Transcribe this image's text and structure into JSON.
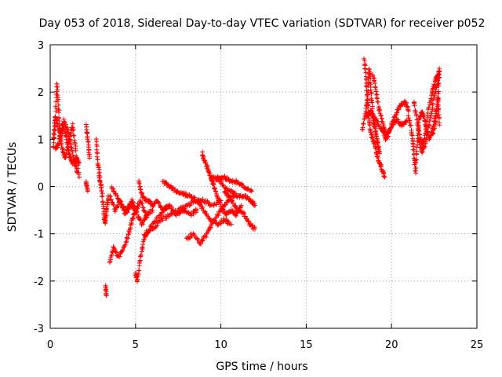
{
  "chart_data": {
    "type": "scatter",
    "title": "Day 053 of 2018, Sidereal Day-to-day VTEC variation (SDTVAR) for receiver p052",
    "xlabel": "GPS time / hours",
    "ylabel": "SDTVAR / TECUs",
    "xlim": [
      0,
      25
    ],
    "ylim": [
      -3,
      3
    ],
    "xticks": [
      0,
      5,
      10,
      15,
      20,
      25
    ],
    "yticks": [
      -3,
      -2,
      -1,
      0,
      1,
      2,
      3
    ],
    "grid": true,
    "marker": "+",
    "color": "#ff0000",
    "series": [
      {
        "name": "SDTVAR",
        "traces": [
          [
            [
              0.2,
              0.8
            ],
            [
              0.3,
              1.4
            ],
            [
              0.4,
              2.2
            ],
            [
              0.5,
              1.6
            ],
            [
              0.6,
              1.0
            ],
            [
              0.8,
              1.4
            ],
            [
              1.0,
              1.2
            ],
            [
              1.2,
              0.9
            ],
            [
              1.4,
              0.5
            ],
            [
              1.6,
              0.3
            ]
          ],
          [
            [
              0.2,
              1.0
            ],
            [
              0.3,
              1.5
            ],
            [
              0.5,
              1.2
            ],
            [
              0.7,
              0.8
            ],
            [
              0.9,
              0.6
            ],
            [
              1.1,
              1.0
            ],
            [
              1.3,
              1.3
            ],
            [
              1.5,
              0.8
            ],
            [
              1.7,
              0.2
            ]
          ],
          [
            [
              0.3,
              0.8
            ],
            [
              0.5,
              0.9
            ],
            [
              0.7,
              1.3
            ],
            [
              0.9,
              1.1
            ],
            [
              1.1,
              0.7
            ],
            [
              1.3,
              0.5
            ],
            [
              1.5,
              0.6
            ],
            [
              1.7,
              0.5
            ]
          ],
          [
            [
              2.1,
              0.1
            ],
            [
              2.2,
              -0.1
            ]
          ],
          [
            [
              2.1,
              1.3
            ],
            [
              2.2,
              1.0
            ],
            [
              2.3,
              0.6
            ]
          ],
          [
            [
              2.7,
              1.0
            ],
            [
              2.8,
              0.5
            ],
            [
              2.9,
              0.2
            ],
            [
              3.0,
              0.0
            ],
            [
              3.1,
              -0.4
            ],
            [
              3.2,
              -0.8
            ],
            [
              3.3,
              -0.5
            ],
            [
              3.4,
              -0.2
            ]
          ],
          [
            [
              3.25,
              -2.1
            ],
            [
              3.3,
              -2.3
            ]
          ],
          [
            [
              3.5,
              -1.6
            ],
            [
              3.7,
              -1.3
            ],
            [
              4.0,
              -1.5
            ],
            [
              4.3,
              -1.3
            ],
            [
              4.6,
              -1.0
            ],
            [
              4.8,
              -0.7
            ],
            [
              5.0,
              -0.5
            ]
          ],
          [
            [
              3.5,
              -0.2
            ],
            [
              3.8,
              -0.5
            ],
            [
              4.1,
              -0.3
            ],
            [
              4.4,
              -0.6
            ],
            [
              4.7,
              -0.4
            ],
            [
              5.0,
              -0.5
            ],
            [
              5.3,
              -0.3
            ],
            [
              5.6,
              -0.6
            ],
            [
              6.0,
              -0.5
            ]
          ],
          [
            [
              3.6,
              0.0
            ],
            [
              3.9,
              -0.2
            ],
            [
              4.2,
              -0.4
            ],
            [
              4.5,
              -0.5
            ],
            [
              4.8,
              -0.3
            ],
            [
              5.1,
              -0.6
            ],
            [
              5.4,
              -0.8
            ],
            [
              5.7,
              -0.6
            ]
          ],
          [
            [
              5.0,
              -1.8
            ],
            [
              5.1,
              -2.0
            ],
            [
              5.3,
              -1.5
            ],
            [
              5.5,
              -1.1
            ],
            [
              5.8,
              -0.9
            ],
            [
              6.2,
              -0.7
            ],
            [
              6.6,
              -0.5
            ],
            [
              7.0,
              -0.4
            ]
          ],
          [
            [
              5.2,
              0.1
            ],
            [
              5.4,
              -0.2
            ],
            [
              5.7,
              -0.3
            ],
            [
              6.0,
              -0.4
            ],
            [
              6.3,
              -0.3
            ],
            [
              6.6,
              -0.5
            ],
            [
              7.0,
              -0.4
            ],
            [
              7.4,
              -0.6
            ],
            [
              7.8,
              -0.5
            ],
            [
              8.2,
              -0.6
            ],
            [
              8.6,
              -0.5
            ]
          ],
          [
            [
              5.5,
              -1.0
            ],
            [
              6.0,
              -0.9
            ],
            [
              6.5,
              -0.7
            ],
            [
              7.0,
              -0.6
            ],
            [
              7.5,
              -0.5
            ],
            [
              8.0,
              -0.4
            ],
            [
              8.5,
              -0.3
            ],
            [
              9.0,
              -0.3
            ],
            [
              9.5,
              -0.4
            ],
            [
              10.0,
              -0.3
            ]
          ],
          [
            [
              6.6,
              0.1
            ],
            [
              7.0,
              0.0
            ],
            [
              7.4,
              -0.1
            ],
            [
              7.8,
              -0.15
            ],
            [
              8.2,
              -0.2
            ],
            [
              8.6,
              -0.3
            ],
            [
              9.0,
              -0.5
            ],
            [
              9.4,
              -0.7
            ],
            [
              9.8,
              -0.8
            ],
            [
              10.2,
              -0.7
            ],
            [
              10.6,
              -0.8
            ]
          ],
          [
            [
              8.0,
              -1.1
            ],
            [
              8.4,
              -1.0
            ],
            [
              8.8,
              -1.2
            ],
            [
              9.2,
              -1.0
            ],
            [
              9.6,
              -0.7
            ],
            [
              10.0,
              -0.5
            ],
            [
              10.4,
              -0.3
            ],
            [
              10.8,
              -0.2
            ]
          ],
          [
            [
              8.9,
              0.7
            ],
            [
              9.1,
              0.5
            ],
            [
              9.3,
              0.3
            ],
            [
              9.5,
              0.1
            ],
            [
              9.7,
              -0.1
            ],
            [
              10.0,
              -0.4
            ],
            [
              10.3,
              -0.6
            ],
            [
              10.6,
              -0.5
            ],
            [
              10.9,
              -0.6
            ],
            [
              11.2,
              -0.4
            ]
          ],
          [
            [
              9.4,
              0.2
            ],
            [
              9.8,
              0.15
            ],
            [
              10.2,
              0.2
            ],
            [
              10.6,
              0.1
            ],
            [
              11.0,
              0.1
            ],
            [
              11.4,
              0.0
            ],
            [
              11.8,
              -0.1
            ]
          ],
          [
            [
              9.8,
              0.2
            ],
            [
              10.2,
              0.0
            ],
            [
              10.6,
              -0.1
            ],
            [
              11.0,
              -0.2
            ],
            [
              11.4,
              -0.2
            ],
            [
              11.8,
              -0.3
            ],
            [
              12.0,
              -0.4
            ]
          ],
          [
            [
              10.2,
              -0.1
            ],
            [
              10.6,
              -0.3
            ],
            [
              11.0,
              -0.5
            ],
            [
              11.4,
              -0.6
            ],
            [
              11.7,
              -0.8
            ],
            [
              12.0,
              -0.9
            ]
          ],
          [
            [
              18.3,
              1.2
            ],
            [
              18.5,
              1.6
            ],
            [
              18.6,
              2.0
            ],
            [
              18.7,
              2.5
            ],
            [
              18.8,
              2.0
            ],
            [
              18.9,
              1.5
            ],
            [
              19.0,
              1.3
            ],
            [
              19.1,
              1.1
            ],
            [
              19.2,
              0.9
            ],
            [
              19.3,
              0.7
            ]
          ],
          [
            [
              18.4,
              2.7
            ],
            [
              18.5,
              2.3
            ],
            [
              18.6,
              1.8
            ],
            [
              18.7,
              1.4
            ],
            [
              18.8,
              1.1
            ],
            [
              19.0,
              0.9
            ],
            [
              19.2,
              0.6
            ],
            [
              19.4,
              0.4
            ],
            [
              19.6,
              0.2
            ]
          ],
          [
            [
              18.9,
              2.4
            ],
            [
              19.1,
              2.0
            ],
            [
              19.3,
              1.6
            ],
            [
              19.5,
              1.3
            ],
            [
              19.7,
              1.1
            ],
            [
              19.9,
              1.2
            ],
            [
              20.2,
              1.5
            ],
            [
              20.5,
              1.7
            ],
            [
              20.8,
              1.8
            ],
            [
              21.0,
              1.6
            ]
          ],
          [
            [
              18.5,
              1.5
            ],
            [
              18.8,
              1.6
            ],
            [
              19.1,
              1.4
            ],
            [
              19.4,
              1.2
            ],
            [
              19.7,
              1.0
            ],
            [
              20.0,
              1.3
            ],
            [
              20.3,
              1.4
            ],
            [
              20.6,
              1.3
            ],
            [
              20.9,
              1.4
            ]
          ],
          [
            [
              21.0,
              1.5
            ],
            [
              21.2,
              1.1
            ],
            [
              21.3,
              0.7
            ],
            [
              21.4,
              0.3
            ],
            [
              21.5,
              0.9
            ],
            [
              21.6,
              1.4
            ],
            [
              21.8,
              1.6
            ],
            [
              22.0,
              1.3
            ],
            [
              22.2,
              1.0
            ],
            [
              22.4,
              1.2
            ],
            [
              22.6,
              1.6
            ]
          ],
          [
            [
              21.3,
              1.8
            ],
            [
              21.5,
              1.4
            ],
            [
              21.7,
              1.0
            ],
            [
              21.9,
              0.8
            ],
            [
              22.1,
              1.1
            ],
            [
              22.3,
              1.5
            ],
            [
              22.5,
              1.9
            ],
            [
              22.7,
              2.2
            ],
            [
              22.8,
              2.5
            ]
          ],
          [
            [
              21.6,
              1.0
            ],
            [
              21.8,
              0.7
            ],
            [
              22.0,
              1.2
            ],
            [
              22.2,
              1.7
            ],
            [
              22.4,
              2.0
            ],
            [
              22.6,
              2.3
            ],
            [
              22.8,
              2.4
            ],
            [
              22.7,
              1.5
            ]
          ],
          [
            [
              22.4,
              1.1
            ],
            [
              22.6,
              1.4
            ],
            [
              22.7,
              1.9
            ],
            [
              22.8,
              1.3
            ]
          ]
        ]
      }
    ]
  }
}
